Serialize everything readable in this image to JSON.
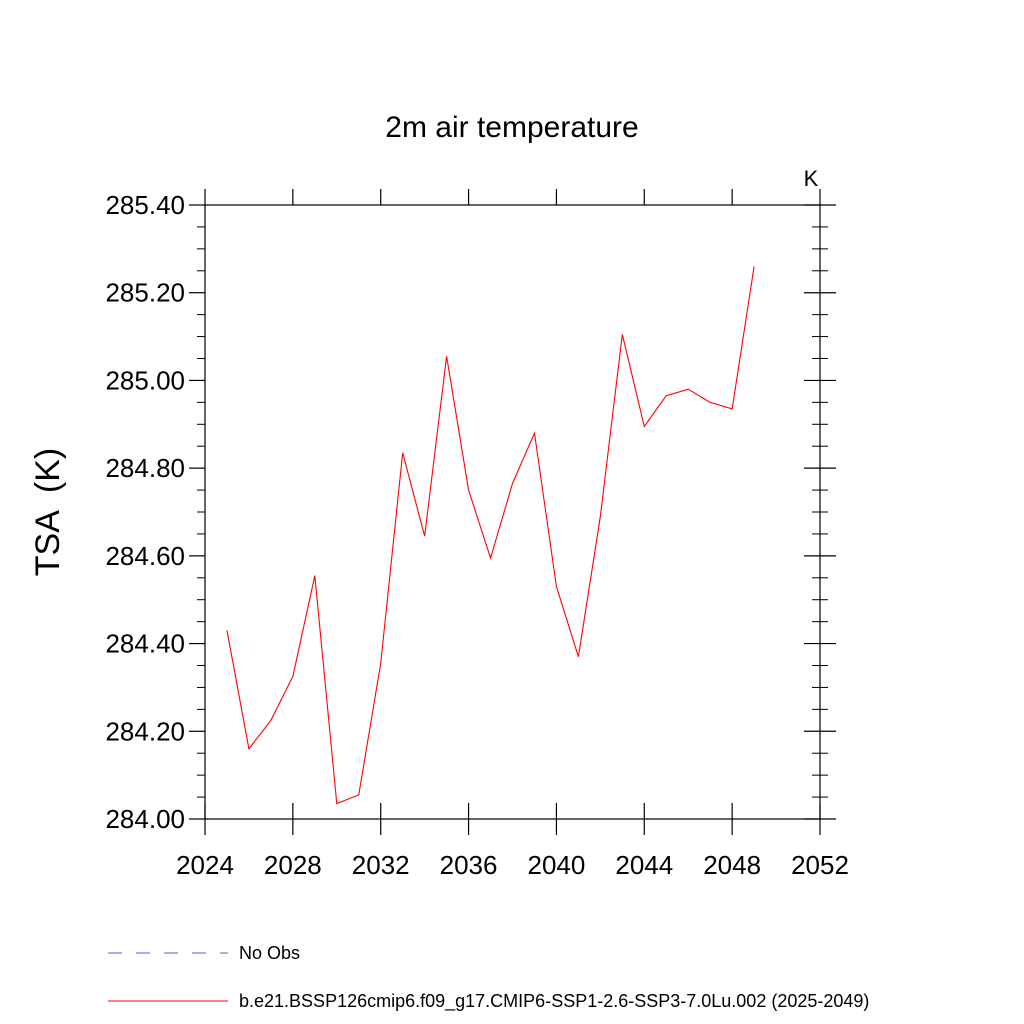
{
  "chart_data": {
    "type": "line",
    "title": "2m air temperature",
    "units": "K",
    "xlabel": "",
    "ylabel": "TSA  (K)",
    "xlim": [
      2024,
      2052
    ],
    "ylim": [
      284.0,
      285.4
    ],
    "xticks": [
      2024,
      2028,
      2032,
      2036,
      2040,
      2044,
      2048,
      2052
    ],
    "xtick_labels": [
      "2024",
      "2028",
      "2032",
      "2036",
      "2040",
      "2044",
      "2048",
      "2052"
    ],
    "yticks": [
      284.0,
      284.2,
      284.4,
      284.6,
      284.8,
      285.0,
      285.2,
      285.4
    ],
    "ytick_labels": [
      "284.00",
      "284.20",
      "284.40",
      "284.60",
      "284.80",
      "285.00",
      "285.20",
      "285.40"
    ],
    "grid": false,
    "legend_position": "bottom",
    "series": [
      {
        "name": "b.e21.BSSP126cmip6.f09_g17.CMIP6-SSP1-2.6-SSP3-7.0Lu.002 (2025-2049)",
        "color": "#ff0000",
        "style": "solid",
        "x": [
          2025,
          2026,
          2027,
          2028,
          2029,
          2030,
          2031,
          2032,
          2033,
          2034,
          2035,
          2036,
          2037,
          2038,
          2039,
          2040,
          2041,
          2042,
          2043,
          2044,
          2045,
          2046,
          2047,
          2048,
          2049
        ],
        "values": [
          284.43,
          284.16,
          284.225,
          284.325,
          284.555,
          284.035,
          284.055,
          284.355,
          284.835,
          284.645,
          285.055,
          284.75,
          284.595,
          284.765,
          284.88,
          284.53,
          284.37,
          284.69,
          285.105,
          284.895,
          284.965,
          284.98,
          284.95,
          284.935,
          285.26
        ]
      }
    ],
    "legend": [
      {
        "label": "No Obs",
        "color": "#6a5acd",
        "style": "dashed"
      },
      {
        "label": "b.e21.BSSP126cmip6.f09_g17.CMIP6-SSP1-2.6-SSP3-7.0Lu.002 (2025-2049)",
        "color": "#ff0000",
        "style": "solid"
      }
    ]
  }
}
